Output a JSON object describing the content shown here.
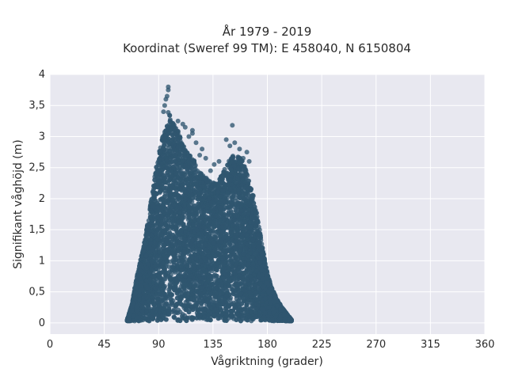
{
  "chart_data": {
    "type": "scatter",
    "title_line1": "År 1979 - 2019",
    "title_line2": "Koordinat (Sweref 99 TM): E 458040, N 6150804",
    "xlabel": "Vågriktning (grader)",
    "ylabel": "Signifikant våghöjd (m)",
    "xlim": [
      0,
      360
    ],
    "ylim": [
      -0.18,
      4
    ],
    "xticks": [
      0,
      45,
      90,
      135,
      180,
      225,
      270,
      315,
      360
    ],
    "xtick_labels": [
      "0",
      "45",
      "90",
      "135",
      "180",
      "225",
      "270",
      "315",
      "360"
    ],
    "yticks": [
      0,
      0.5,
      1,
      1.5,
      2,
      2.5,
      3,
      3.5,
      4
    ],
    "ytick_labels": [
      "0",
      "0,5",
      "1",
      "1,5",
      "2",
      "2,5",
      "3",
      "3,5",
      "4"
    ],
    "grid": true,
    "point_color": "#2f5670",
    "plot_background": "#e8e8f0",
    "envelope": {
      "x": [
        64,
        68,
        72,
        76,
        80,
        84,
        88,
        92,
        96,
        98,
        100,
        104,
        108,
        112,
        116,
        120,
        124,
        128,
        132,
        136,
        140,
        144,
        148,
        152,
        156,
        160,
        164,
        168,
        172,
        176,
        180,
        184,
        188,
        192,
        196,
        200
      ],
      "y": [
        0.05,
        0.3,
        0.75,
        1.1,
        1.5,
        2.0,
        2.5,
        2.9,
        3.2,
        3.4,
        3.3,
        3.2,
        3.0,
        2.8,
        2.7,
        2.6,
        2.45,
        2.35,
        2.3,
        2.25,
        2.3,
        2.45,
        2.6,
        2.7,
        2.7,
        2.6,
        2.35,
        2.1,
        1.7,
        1.2,
        0.8,
        0.55,
        0.38,
        0.25,
        0.15,
        0.05
      ]
    },
    "outliers": [
      {
        "x": 98,
        "y": 3.8
      },
      {
        "x": 98,
        "y": 3.75
      },
      {
        "x": 97,
        "y": 3.65
      },
      {
        "x": 96,
        "y": 3.6
      },
      {
        "x": 95,
        "y": 3.5
      },
      {
        "x": 94,
        "y": 3.4
      },
      {
        "x": 106,
        "y": 3.25
      },
      {
        "x": 110,
        "y": 3.2
      },
      {
        "x": 118,
        "y": 3.1
      },
      {
        "x": 118,
        "y": 3.05
      },
      {
        "x": 112,
        "y": 3.15
      },
      {
        "x": 115,
        "y": 3.0
      },
      {
        "x": 121,
        "y": 2.9
      },
      {
        "x": 126,
        "y": 2.8
      },
      {
        "x": 129,
        "y": 2.65
      },
      {
        "x": 136,
        "y": 2.55
      },
      {
        "x": 140,
        "y": 2.6
      },
      {
        "x": 146,
        "y": 2.95
      },
      {
        "x": 149,
        "y": 2.85
      },
      {
        "x": 151,
        "y": 3.18
      },
      {
        "x": 153,
        "y": 2.9
      },
      {
        "x": 157,
        "y": 2.8
      },
      {
        "x": 160,
        "y": 2.65
      },
      {
        "x": 163,
        "y": 2.75
      },
      {
        "x": 165,
        "y": 2.6
      },
      {
        "x": 133,
        "y": 2.45
      },
      {
        "x": 124,
        "y": 2.7
      }
    ],
    "n_points": 9000
  }
}
